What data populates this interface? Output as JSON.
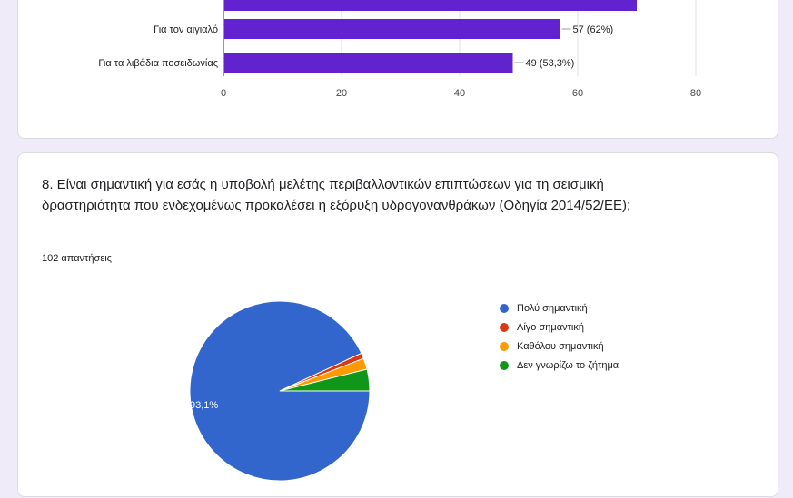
{
  "chart_data": [
    {
      "type": "bar",
      "orientation": "horizontal",
      "categories": [
        "",
        "Για τον αιγιαλό",
        "Για τα λιβάδια ποσειδωνίας"
      ],
      "values": [
        70,
        57,
        49
      ],
      "value_labels": [
        "",
        "57 (62%)",
        "49 (53,3%)"
      ],
      "xlim": [
        0,
        80
      ],
      "xticks": [
        "0",
        "20",
        "40",
        "60",
        "80"
      ],
      "color": "#6322cf",
      "grid": true
    },
    {
      "type": "pie",
      "title": "8. Είναι σημαντική για εσάς η υποβολή μελέτης περιβαλλοντικών επιπτώσεων για τη σεισμική δραστηριότητα που ενδεχομένως προκαλέσει η εξόρυξη υδρογονανθράκων (Οδηγία 2014/52/ΕΕ);",
      "subtitle": "102 απαντήσεις",
      "labels": [
        "Πολύ σημαντική",
        "Λίγο σημαντική",
        "Καθόλου σημαντική",
        "Δεν γνωρίζω το ζήτημα"
      ],
      "values": [
        93.1,
        1.0,
        2.0,
        3.9
      ],
      "slice_labels": [
        "93,1%",
        "",
        "",
        ""
      ],
      "colors": [
        "#3366cc",
        "#dc3912",
        "#ff9900",
        "#109618"
      ],
      "legend": "right"
    }
  ]
}
